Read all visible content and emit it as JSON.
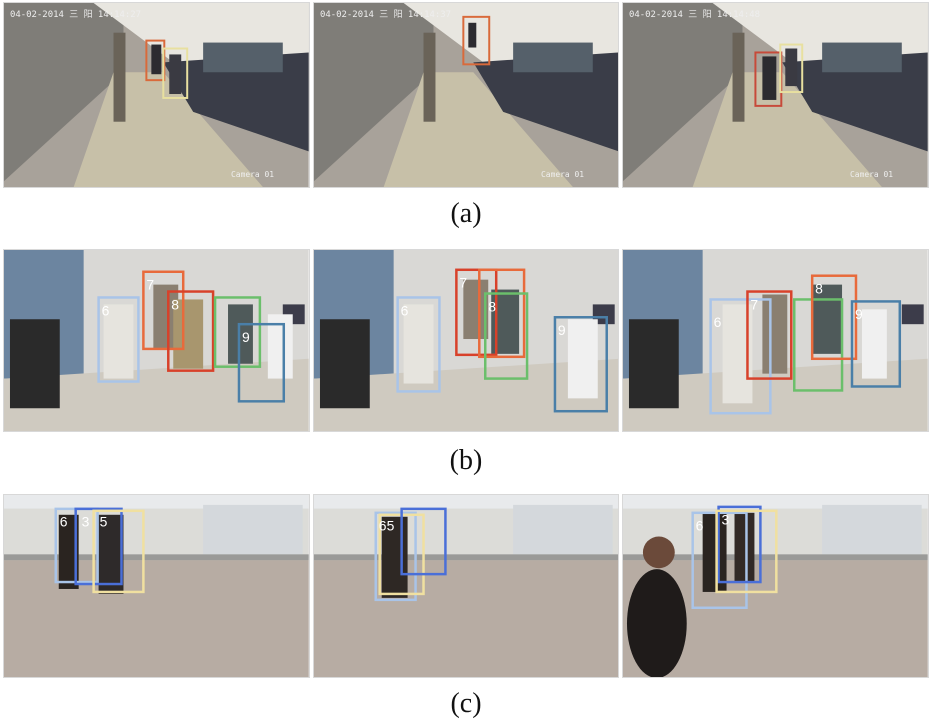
{
  "rows": [
    {
      "caption": "(a)",
      "scene": "corridor office",
      "panels": [
        {
          "timestamp": "04-02-2014 三 阳 14:14:27",
          "camera": "Camera 01"
        },
        {
          "timestamp": "04-02-2014 三 阳 14:14:37",
          "camera": "Camera 01"
        },
        {
          "timestamp": "04-02-2014 三 阳 14:14:48",
          "camera": "Camera 01"
        }
      ],
      "box_colors": [
        "#d96a3b",
        "#e8e0a0",
        "#c74a3a"
      ]
    },
    {
      "caption": "(b)",
      "scene": "lab with people",
      "panels": [
        {
          "ids": [
            "6",
            "7",
            "8",
            "9"
          ]
        },
        {
          "ids": [
            "6",
            "7",
            "8",
            "9"
          ]
        },
        {
          "ids": [
            "6",
            "7",
            "8",
            "9"
          ]
        }
      ],
      "box_colors": [
        "#a9c4e8",
        "#e86a3b",
        "#6bbf6b",
        "#4a7fa8",
        "#d8412a"
      ]
    },
    {
      "caption": "(c)",
      "scene": "rooftop terrace",
      "panels": [
        {
          "ids": [
            "6",
            "3",
            "5"
          ]
        },
        {
          "ids": [
            "6",
            "5"
          ]
        },
        {
          "ids": [
            "6",
            "3"
          ]
        }
      ],
      "box_colors": [
        "#a9c4e8",
        "#4a6fd8",
        "#f0e0a0"
      ]
    }
  ]
}
